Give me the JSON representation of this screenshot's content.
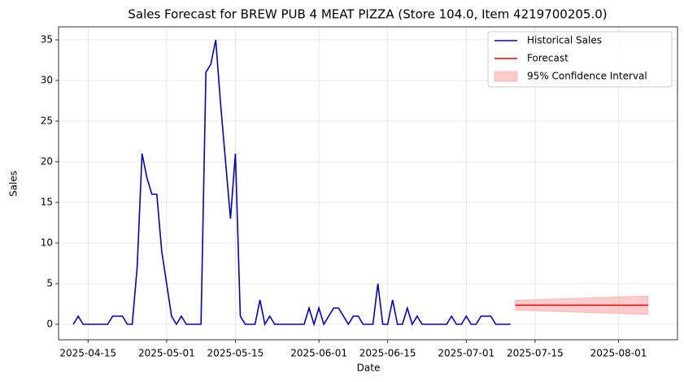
{
  "chart_data": {
    "type": "line",
    "title": "Sales Forecast for BREW PUB 4 MEAT PIZZA (Store 104.0, Item 4219700205.0)",
    "xlabel": "Date",
    "ylabel": "Sales",
    "xlim": [
      "2025-04-09",
      "2025-08-13"
    ],
    "xticks": [
      "2025-04-15",
      "2025-05-01",
      "2025-05-15",
      "2025-06-01",
      "2025-06-15",
      "2025-07-01",
      "2025-07-15",
      "2025-08-01"
    ],
    "ylim": [
      -1.9,
      36.6
    ],
    "yticks": [
      0,
      5,
      10,
      15,
      20,
      25,
      30,
      35
    ],
    "grid": true,
    "legend": "upper right",
    "series": [
      {
        "name": "Historical Sales",
        "color": "#0000cc",
        "x": [
          "2025-04-12",
          "2025-04-13",
          "2025-04-14",
          "2025-04-15",
          "2025-04-16",
          "2025-04-17",
          "2025-04-18",
          "2025-04-19",
          "2025-04-20",
          "2025-04-21",
          "2025-04-22",
          "2025-04-23",
          "2025-04-24",
          "2025-04-25",
          "2025-04-26",
          "2025-04-27",
          "2025-04-28",
          "2025-04-29",
          "2025-04-30",
          "2025-05-01",
          "2025-05-02",
          "2025-05-03",
          "2025-05-04",
          "2025-05-05",
          "2025-05-06",
          "2025-05-07",
          "2025-05-08",
          "2025-05-09",
          "2025-05-10",
          "2025-05-11",
          "2025-05-12",
          "2025-05-13",
          "2025-05-14",
          "2025-05-15",
          "2025-05-16",
          "2025-05-17",
          "2025-05-18",
          "2025-05-19",
          "2025-05-20",
          "2025-05-21",
          "2025-05-22",
          "2025-05-23",
          "2025-05-24",
          "2025-05-25",
          "2025-05-26",
          "2025-05-27",
          "2025-05-28",
          "2025-05-29",
          "2025-05-30",
          "2025-05-31",
          "2025-06-01",
          "2025-06-02",
          "2025-06-03",
          "2025-06-04",
          "2025-06-05",
          "2025-06-06",
          "2025-06-07",
          "2025-06-08",
          "2025-06-09",
          "2025-06-10",
          "2025-06-11",
          "2025-06-12",
          "2025-06-13",
          "2025-06-14",
          "2025-06-15",
          "2025-06-16",
          "2025-06-17",
          "2025-06-18",
          "2025-06-19",
          "2025-06-20",
          "2025-06-21",
          "2025-06-22",
          "2025-06-23",
          "2025-06-24",
          "2025-06-25",
          "2025-06-26",
          "2025-06-27",
          "2025-06-28",
          "2025-06-29",
          "2025-06-30",
          "2025-07-01",
          "2025-07-02",
          "2025-07-03",
          "2025-07-04",
          "2025-07-05",
          "2025-07-06",
          "2025-07-07",
          "2025-07-08",
          "2025-07-09",
          "2025-07-10"
        ],
        "values": [
          0,
          1,
          0,
          0,
          0,
          0,
          0,
          0,
          1,
          1,
          1,
          0,
          0,
          7,
          21,
          18,
          16,
          16,
          9,
          5,
          1,
          0,
          1,
          0,
          0,
          0,
          0,
          31,
          32,
          35,
          27,
          20,
          13,
          21,
          1,
          0,
          0,
          0,
          3,
          0,
          1,
          0,
          0,
          0,
          0,
          0,
          0,
          0,
          2,
          0,
          2,
          0,
          1,
          2,
          2,
          1,
          0,
          1,
          1,
          0,
          0,
          0,
          5,
          0,
          0,
          3,
          0,
          0,
          2,
          0,
          1,
          0,
          0,
          0,
          0,
          0,
          0,
          1,
          0,
          0,
          1,
          0,
          0,
          1,
          1,
          1,
          0,
          0,
          0,
          0
        ]
      },
      {
        "name": "Forecast",
        "color": "#ee0000",
        "x": [
          "2025-07-11",
          "2025-07-12",
          "2025-07-13",
          "2025-07-14",
          "2025-07-15",
          "2025-07-16",
          "2025-07-17",
          "2025-07-18",
          "2025-07-19",
          "2025-07-20",
          "2025-07-21",
          "2025-07-22",
          "2025-07-23",
          "2025-07-24",
          "2025-07-25",
          "2025-07-26",
          "2025-07-27",
          "2025-07-28",
          "2025-07-29",
          "2025-07-30",
          "2025-07-31",
          "2025-08-01",
          "2025-08-02",
          "2025-08-03",
          "2025-08-04",
          "2025-08-05",
          "2025-08-06",
          "2025-08-07"
        ],
        "values": [
          2.35,
          2.35,
          2.35,
          2.35,
          2.35,
          2.35,
          2.35,
          2.35,
          2.35,
          2.35,
          2.35,
          2.35,
          2.35,
          2.35,
          2.35,
          2.35,
          2.35,
          2.35,
          2.35,
          2.35,
          2.35,
          2.35,
          2.35,
          2.35,
          2.35,
          2.35,
          2.35,
          2.35
        ]
      }
    ],
    "band": {
      "name": "95% Confidence Interval",
      "color": "#ff9999",
      "x": [
        "2025-07-11",
        "2025-07-12",
        "2025-07-13",
        "2025-07-14",
        "2025-07-15",
        "2025-07-16",
        "2025-07-17",
        "2025-07-18",
        "2025-07-19",
        "2025-07-20",
        "2025-07-21",
        "2025-07-22",
        "2025-07-23",
        "2025-07-24",
        "2025-07-25",
        "2025-07-26",
        "2025-07-27",
        "2025-07-28",
        "2025-07-29",
        "2025-07-30",
        "2025-07-31",
        "2025-08-01",
        "2025-08-02",
        "2025-08-03",
        "2025-08-04",
        "2025-08-05",
        "2025-08-06",
        "2025-08-07"
      ],
      "lower": [
        1.75,
        1.73,
        1.71,
        1.69,
        1.67,
        1.65,
        1.63,
        1.61,
        1.59,
        1.57,
        1.55,
        1.53,
        1.51,
        1.49,
        1.47,
        1.45,
        1.43,
        1.41,
        1.39,
        1.37,
        1.35,
        1.33,
        1.31,
        1.29,
        1.27,
        1.25,
        1.23,
        1.21
      ],
      "upper": [
        2.95,
        2.97,
        2.99,
        3.01,
        3.03,
        3.05,
        3.07,
        3.09,
        3.11,
        3.13,
        3.15,
        3.17,
        3.19,
        3.21,
        3.23,
        3.25,
        3.27,
        3.29,
        3.31,
        3.33,
        3.35,
        3.37,
        3.39,
        3.41,
        3.43,
        3.45,
        3.47,
        3.49
      ]
    }
  }
}
